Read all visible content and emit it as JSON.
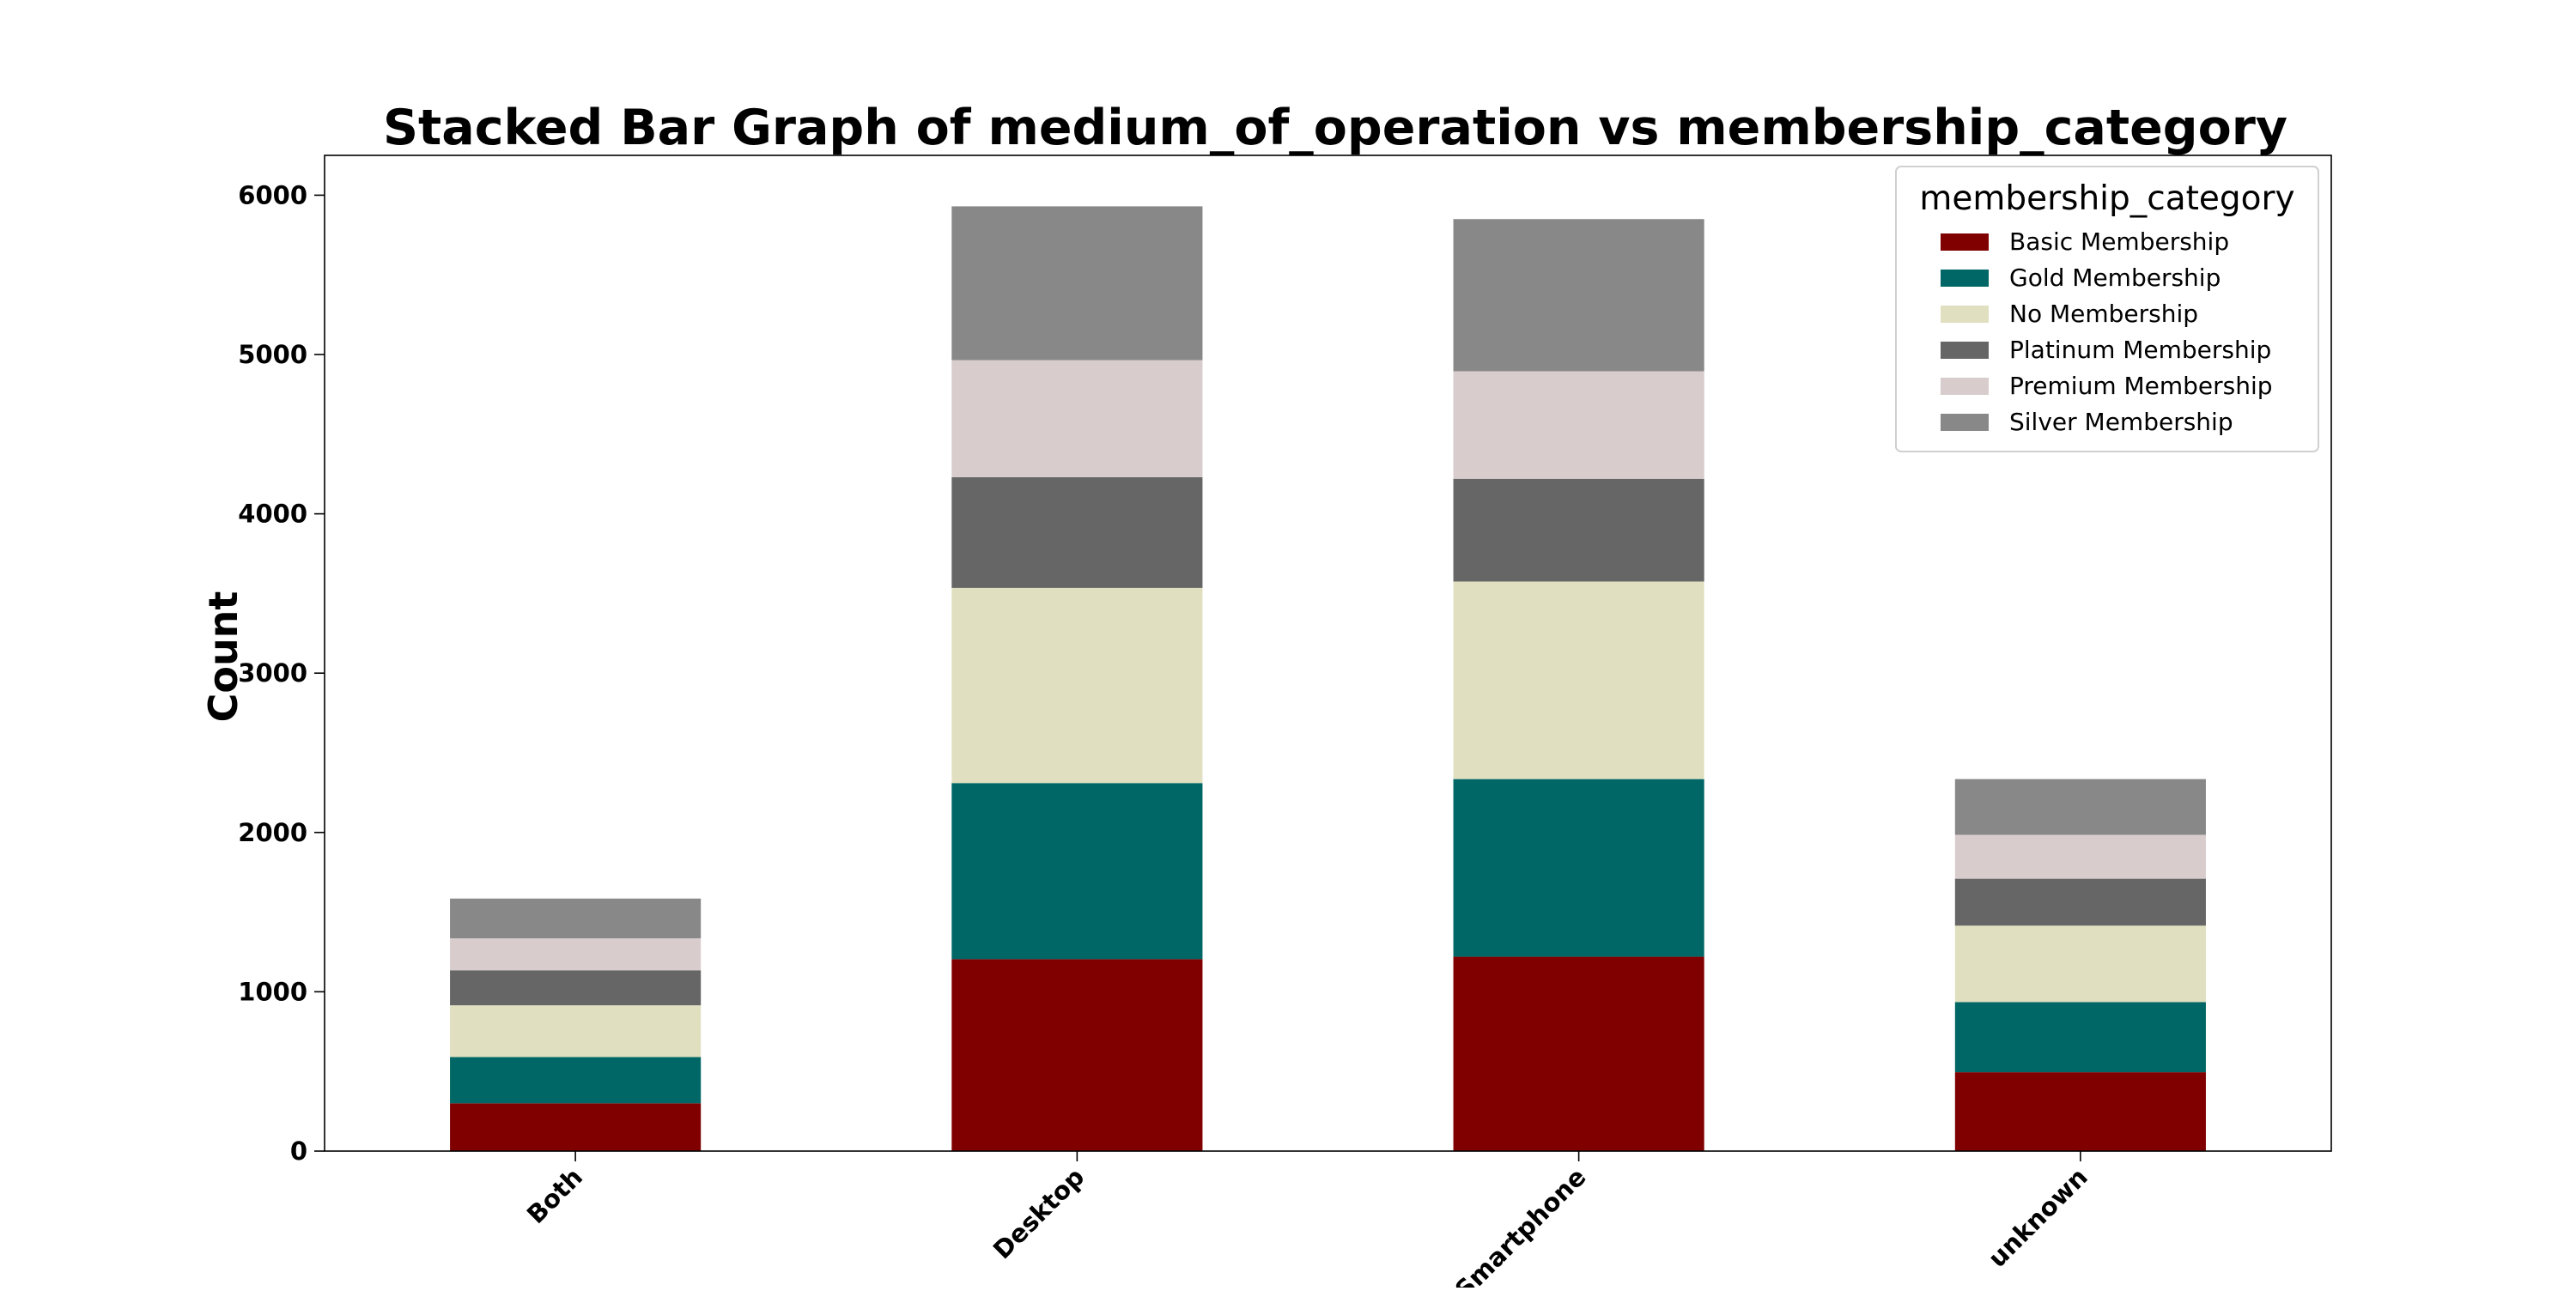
{
  "chart_data": {
    "type": "bar",
    "stacked": true,
    "title": "Stacked Bar Graph of medium_of_operation vs membership_category",
    "xlabel": "",
    "ylabel": "Count",
    "ylim": [
      0,
      6250
    ],
    "yticks": [
      0,
      1000,
      2000,
      3000,
      4000,
      5000,
      6000
    ],
    "categories": [
      "Both",
      "Desktop",
      "Smartphone",
      "unknown"
    ],
    "legend": {
      "title": "membership_category",
      "position": "top-right"
    },
    "grid": false,
    "series": [
      {
        "name": "Basic Membership",
        "color": "#800000",
        "values": [
          300,
          1205,
          1220,
          495
        ]
      },
      {
        "name": "Gold Membership",
        "color": "#006666",
        "values": [
          290,
          1105,
          1115,
          440
        ]
      },
      {
        "name": "No Membership",
        "color": "#e0e0c0",
        "values": [
          325,
          1225,
          1240,
          480
        ]
      },
      {
        "name": "Platinum Membership",
        "color": "#666666",
        "values": [
          220,
          695,
          645,
          295
        ]
      },
      {
        "name": "Premium Membership",
        "color": "#d8cccc",
        "values": [
          200,
          735,
          675,
          275
        ]
      },
      {
        "name": "Silver Membership",
        "color": "#888888",
        "values": [
          250,
          965,
          955,
          350
        ]
      }
    ]
  }
}
